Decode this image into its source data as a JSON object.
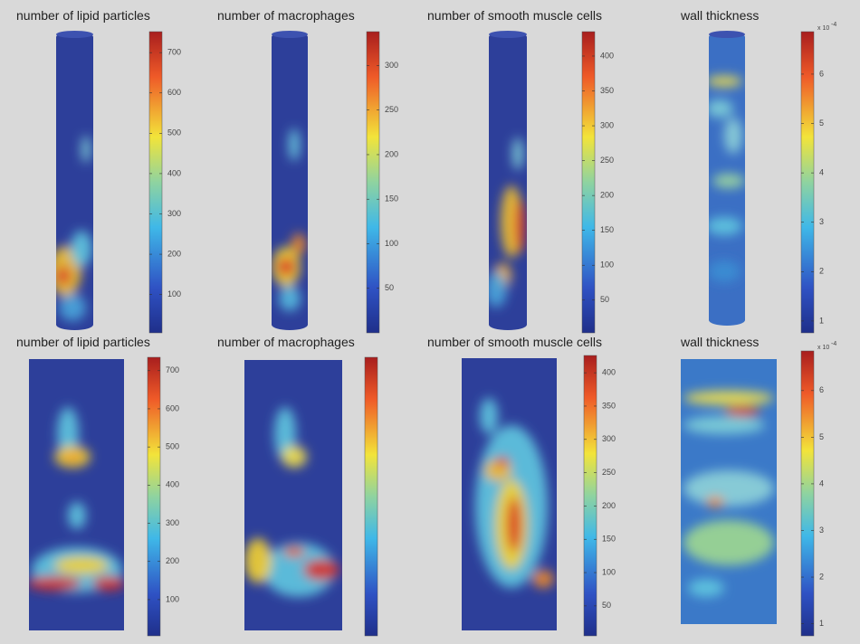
{
  "chart_data": [
    {
      "type": "heatmap",
      "title": "number of lipid particles",
      "clim": [
        5,
        752
      ],
      "cticks": [
        100,
        200,
        300,
        400,
        500,
        600,
        700
      ]
    },
    {
      "type": "heatmap",
      "title": "number of macrophages",
      "clim": [
        0,
        338
      ],
      "cticks": [
        50,
        100,
        150,
        200,
        250,
        300
      ]
    },
    {
      "type": "heatmap",
      "title": "number of smooth muscle cells",
      "clim": [
        3,
        435
      ],
      "cticks": [
        50,
        100,
        150,
        200,
        250,
        300,
        350,
        400
      ]
    },
    {
      "type": "heatmap",
      "title": "wall thickness",
      "clim": [
        0.76,
        6.86
      ],
      "cticks": [
        1,
        2,
        3,
        4,
        5,
        6
      ],
      "scale_label": "x 10",
      "scale_exponent": "-4"
    },
    {
      "type": "heatmap",
      "title": "number of lipid particles",
      "clim": [
        5,
        735
      ],
      "cticks": [
        100,
        200,
        300,
        400,
        500,
        600,
        700
      ]
    },
    {
      "type": "heatmap",
      "title": "number of macrophages"
    },
    {
      "type": "heatmap",
      "title": "number of smooth muscle cells",
      "clim": [
        5,
        426
      ],
      "cticks": [
        50,
        100,
        150,
        200,
        250,
        300,
        350,
        400
      ]
    },
    {
      "type": "heatmap",
      "title": "wall thickness",
      "clim": [
        0.74,
        6.85
      ],
      "cticks": [
        1,
        2,
        3,
        4,
        5,
        6
      ],
      "scale_label": "x 10",
      "scale_exponent": "-4"
    }
  ]
}
